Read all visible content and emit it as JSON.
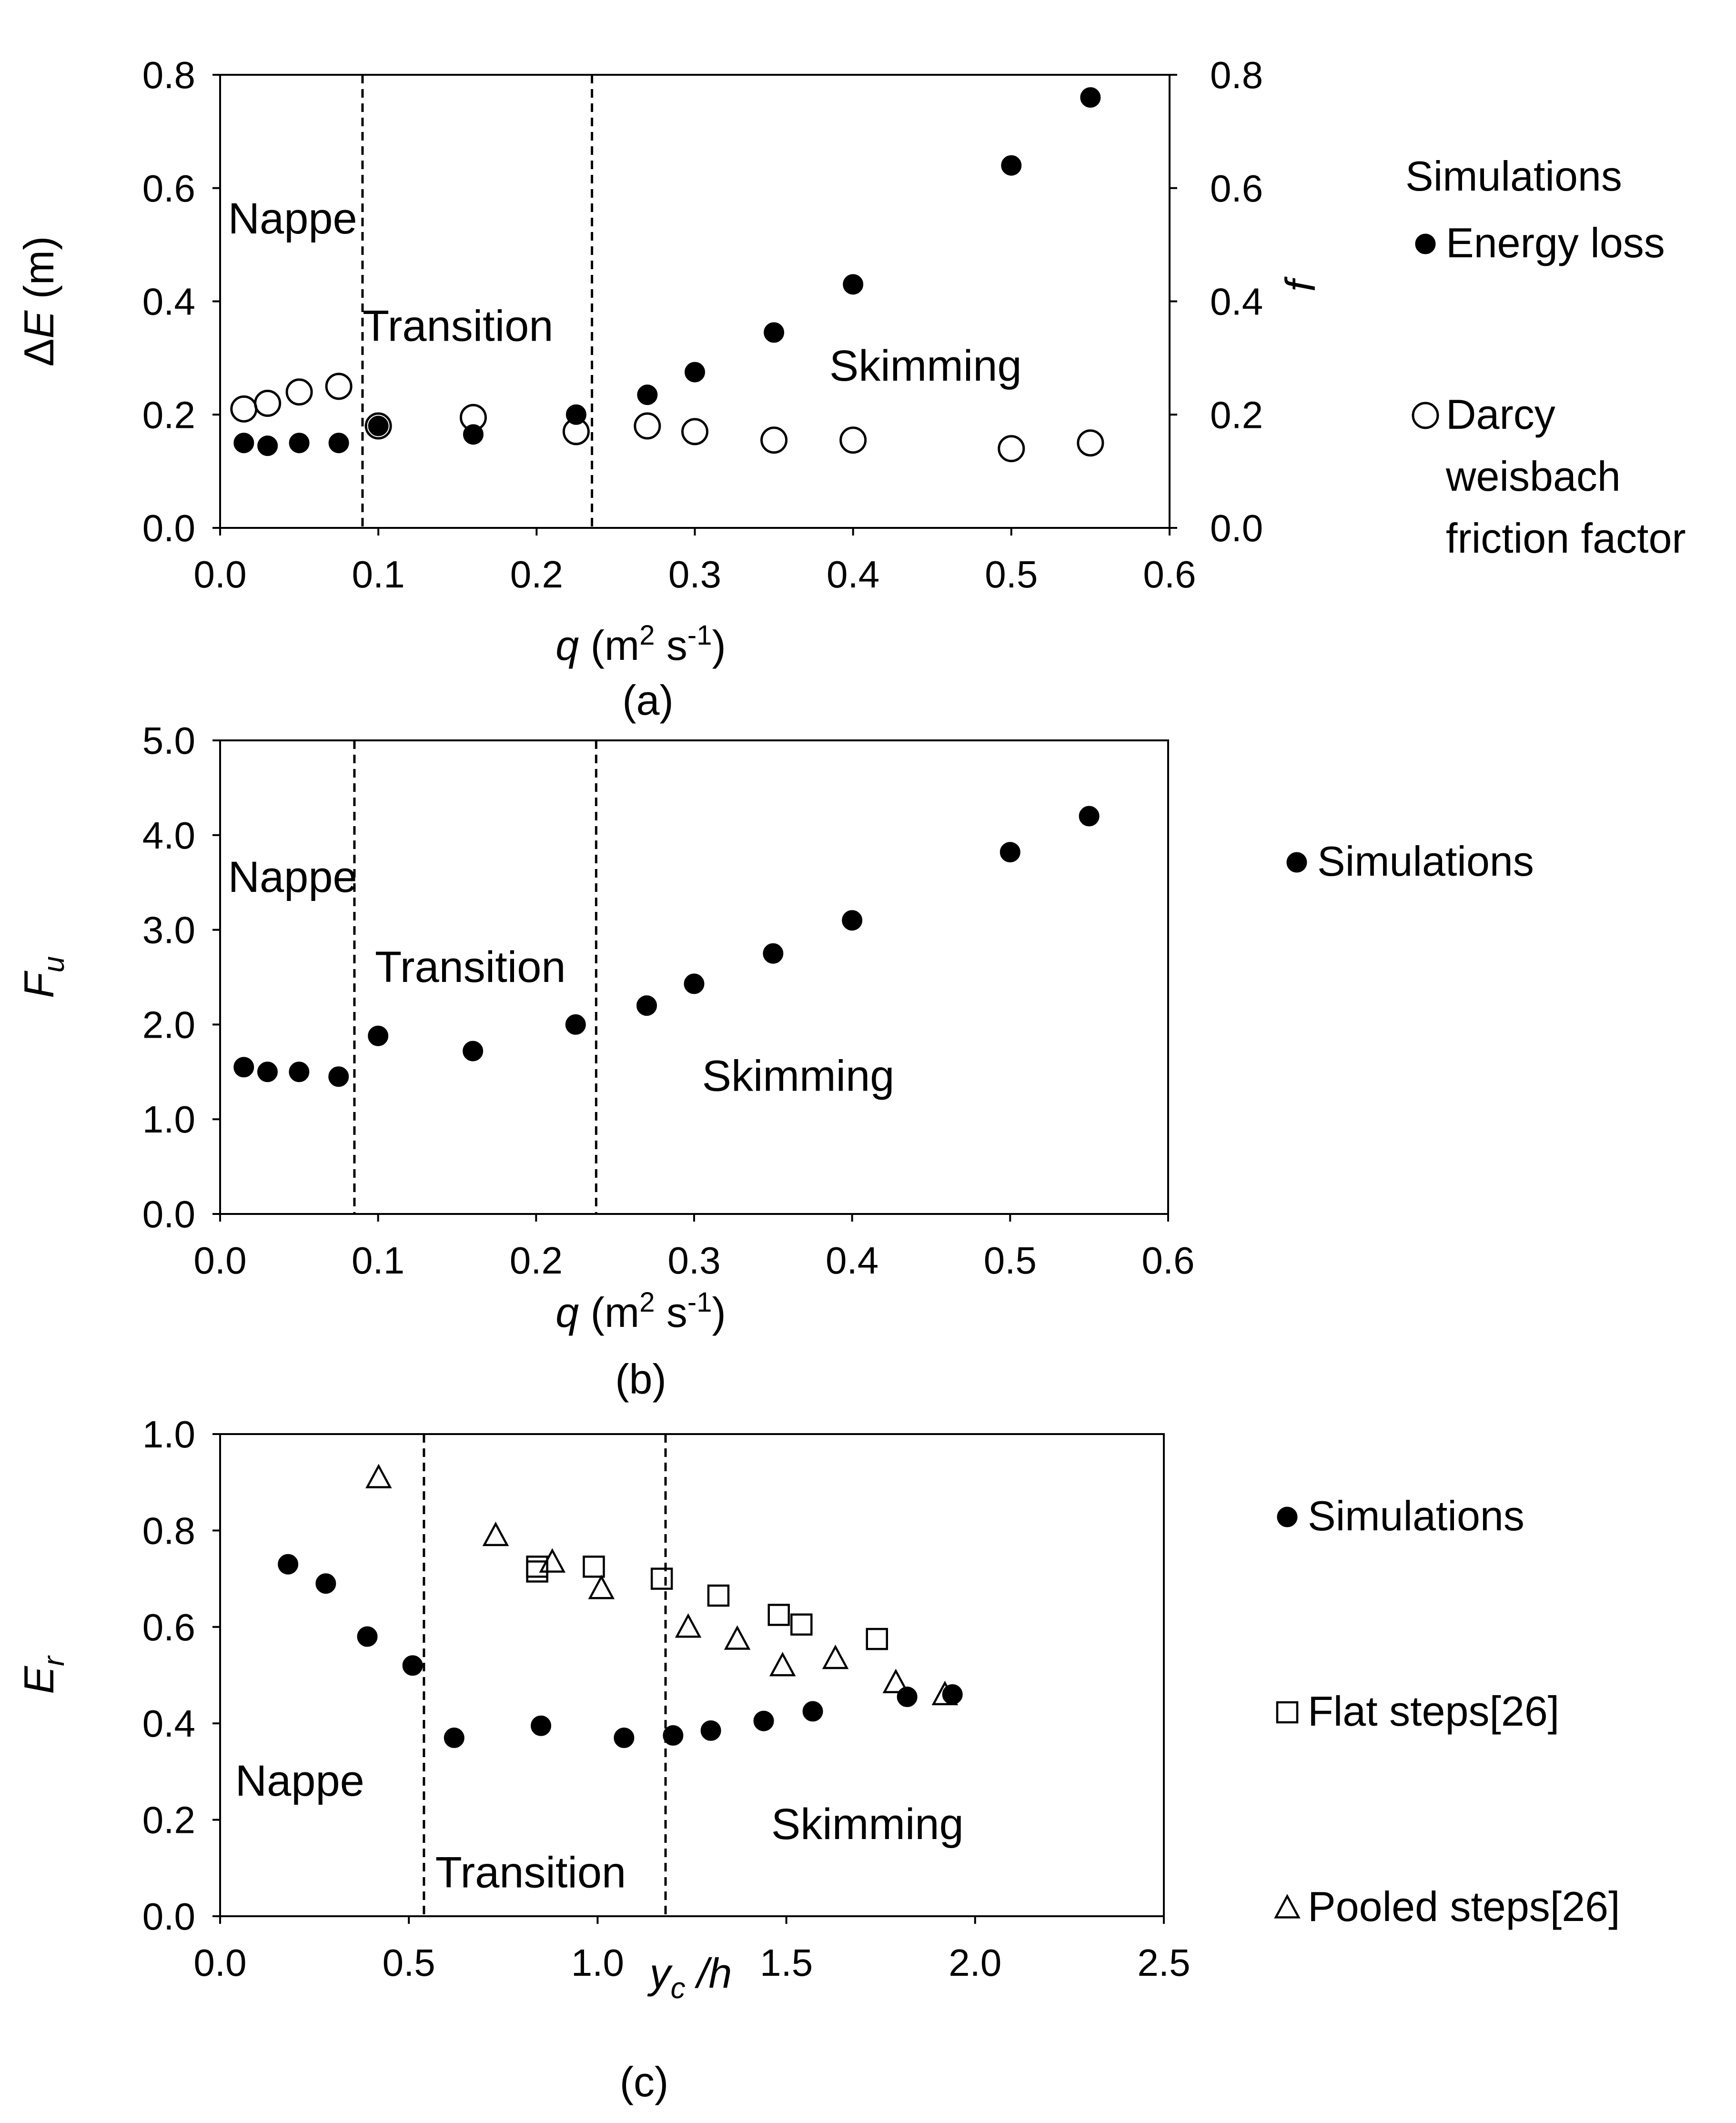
{
  "chart_data": [
    {
      "panel_label": "(a)",
      "type": "scatter",
      "xlabel": {
        "var": "q",
        "unit_open": " (m",
        "sup": "2",
        "mid": " s",
        "sup2": "-1",
        "unit_close": ")"
      },
      "ylabel_left": {
        "prefix": "Δ",
        "var": "E",
        "unit": " (m)"
      },
      "ylabel_right": "f",
      "xlim": [
        0,
        0.6
      ],
      "ylim": [
        0,
        0.8
      ],
      "ylim_right": [
        0,
        0.8
      ],
      "x_ticks": [
        "0.0",
        "0.1",
        "0.2",
        "0.3",
        "0.4",
        "0.5",
        "0.6"
      ],
      "y_ticks": [
        "0.0",
        "0.2",
        "0.4",
        "0.6",
        "0.8"
      ],
      "y_ticks_right": [
        "0.0",
        "0.2",
        "0.4",
        "0.6",
        "0.8"
      ],
      "dividers_x": [
        0.09,
        0.235
      ],
      "regions": [
        {
          "text": "Nappe",
          "x": 0.005,
          "y": 0.52
        },
        {
          "text": "Transition",
          "x": 0.09,
          "y": 0.33
        },
        {
          "text": "Skimming",
          "x": 0.385,
          "y": 0.26
        }
      ],
      "legend": {
        "title": "Simulations",
        "entries": [
          {
            "marker": "filled-circle",
            "lines": [
              "Energy loss"
            ]
          },
          {
            "marker": "open-circle",
            "lines": [
              "Darcy",
              "weisbach",
              "friction factor"
            ]
          }
        ]
      },
      "series": [
        {
          "name": "Energy loss",
          "marker": "filled-circle",
          "axis": "left",
          "x": [
            0.015,
            0.03,
            0.05,
            0.075,
            0.1,
            0.16,
            0.225,
            0.27,
            0.3,
            0.35,
            0.4,
            0.5,
            0.55
          ],
          "y": [
            0.15,
            0.145,
            0.15,
            0.15,
            0.18,
            0.165,
            0.2,
            0.235,
            0.275,
            0.345,
            0.43,
            0.64,
            0.76
          ]
        },
        {
          "name": "Darcy weisbach friction factor",
          "marker": "open-circle",
          "axis": "right",
          "x": [
            0.015,
            0.03,
            0.05,
            0.075,
            0.1,
            0.16,
            0.225,
            0.27,
            0.3,
            0.35,
            0.4,
            0.5,
            0.55
          ],
          "y": [
            0.21,
            0.22,
            0.24,
            0.25,
            0.18,
            0.195,
            0.17,
            0.18,
            0.17,
            0.155,
            0.155,
            0.14,
            0.15
          ]
        }
      ]
    },
    {
      "panel_label": "(b)",
      "type": "scatter",
      "xlabel": {
        "var": "q",
        "unit_open": " (m",
        "sup": "2",
        "mid": " s",
        "sup2": "-1",
        "unit_close": ")"
      },
      "ylabel_left": {
        "var": "F",
        "sub": "u"
      },
      "xlim": [
        0,
        0.6
      ],
      "ylim": [
        0,
        5
      ],
      "x_ticks": [
        "0.0",
        "0.1",
        "0.2",
        "0.3",
        "0.4",
        "0.5",
        "0.6"
      ],
      "y_ticks": [
        "0.0",
        "1.0",
        "2.0",
        "3.0",
        "4.0",
        "5.0"
      ],
      "dividers_x": [
        0.085,
        0.238
      ],
      "regions": [
        {
          "text": "Nappe",
          "x": 0.005,
          "y": 3.4
        },
        {
          "text": "Transition",
          "x": 0.098,
          "y": 2.45
        },
        {
          "text": "Skimming",
          "x": 0.305,
          "y": 1.3
        }
      ],
      "legend": {
        "entries": [
          {
            "marker": "filled-circle",
            "lines": [
              "Simulations"
            ]
          }
        ]
      },
      "series": [
        {
          "name": "Simulations",
          "marker": "filled-circle",
          "x": [
            0.015,
            0.03,
            0.05,
            0.075,
            0.1,
            0.16,
            0.225,
            0.27,
            0.3,
            0.35,
            0.4,
            0.5,
            0.55
          ],
          "y": [
            1.55,
            1.5,
            1.5,
            1.45,
            1.88,
            1.72,
            2.0,
            2.2,
            2.43,
            2.75,
            3.1,
            3.82,
            4.2
          ]
        }
      ]
    },
    {
      "panel_label": "(c)",
      "type": "scatter",
      "xlabel": {
        "var": "y",
        "sub": "c",
        "rest": " /h"
      },
      "ylabel_left": {
        "var": "E",
        "sub": "r"
      },
      "xlim": [
        0,
        2.5
      ],
      "ylim": [
        0,
        1.0
      ],
      "x_ticks": [
        "0.0",
        "0.5",
        "1.0",
        "1.5",
        "2.0",
        "2.5"
      ],
      "y_ticks": [
        "0.0",
        "0.2",
        "0.4",
        "0.6",
        "0.8",
        "1.0"
      ],
      "dividers_x": [
        0.54,
        1.18
      ],
      "regions": [
        {
          "text": "Nappe",
          "x": 0.04,
          "y": 0.25
        },
        {
          "text": "Transition",
          "x": 0.57,
          "y": 0.06
        },
        {
          "text": "Skimming",
          "x": 1.46,
          "y": 0.16
        }
      ],
      "legend": {
        "entries": [
          {
            "marker": "filled-circle",
            "lines": [
              "Simulations"
            ]
          },
          {
            "marker": "open-square",
            "lines": [
              "Flat steps[26]"
            ]
          },
          {
            "marker": "open-triangle",
            "lines": [
              "Pooled steps[26]"
            ]
          }
        ]
      },
      "series": [
        {
          "name": "Simulations",
          "marker": "filled-circle",
          "x": [
            0.18,
            0.28,
            0.39,
            0.51,
            0.62,
            0.85,
            1.07,
            1.2,
            1.3,
            1.44,
            1.57,
            1.82,
            1.94
          ],
          "y": [
            0.73,
            0.69,
            0.58,
            0.52,
            0.37,
            0.395,
            0.37,
            0.375,
            0.385,
            0.405,
            0.425,
            0.455,
            0.46
          ]
        },
        {
          "name": "Flat steps[26]",
          "marker": "open-square",
          "x": [
            0.84,
            0.84,
            0.99,
            1.17,
            1.32,
            1.48,
            1.54,
            1.74
          ],
          "y": [
            0.725,
            0.715,
            0.725,
            0.7,
            0.665,
            0.625,
            0.605,
            0.575
          ]
        },
        {
          "name": "Pooled steps[26]",
          "marker": "open-triangle",
          "x": [
            0.42,
            0.73,
            0.88,
            1.01,
            1.24,
            1.37,
            1.49,
            1.63,
            1.79,
            1.92
          ],
          "y": [
            0.91,
            0.79,
            0.735,
            0.68,
            0.6,
            0.575,
            0.52,
            0.535,
            0.485,
            0.46
          ]
        }
      ]
    }
  ]
}
